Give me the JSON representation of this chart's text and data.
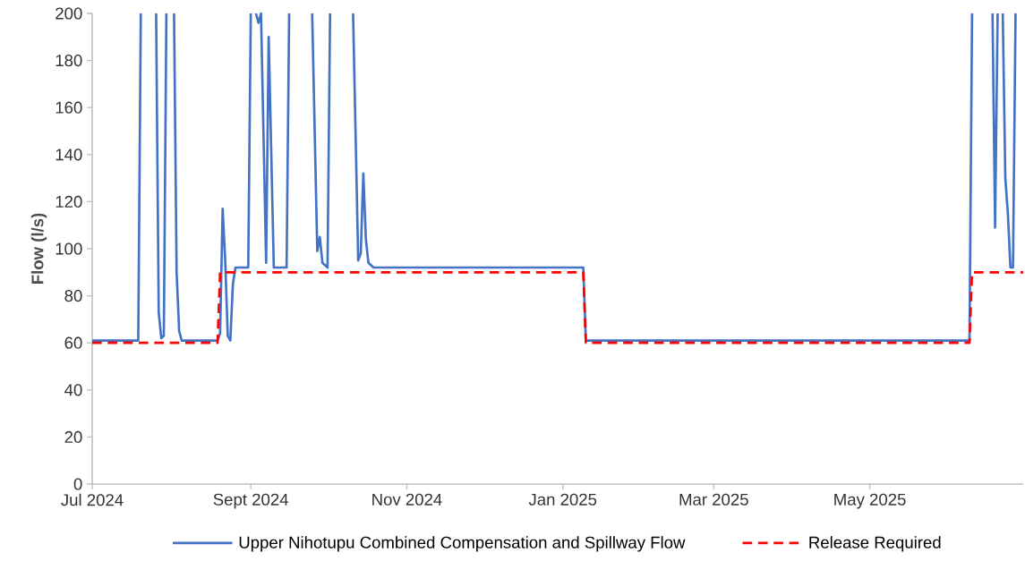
{
  "chart_data": {
    "type": "line",
    "ylabel": "Flow (l/s)",
    "xlim": [
      "2024-07-01",
      "2025-06-30"
    ],
    "xticks": [
      {
        "value": "2024-07-01",
        "label": "Jul 2024"
      },
      {
        "value": "2024-09-01",
        "label": "Sept 2024"
      },
      {
        "value": "2024-11-01",
        "label": "Nov 2024"
      },
      {
        "value": "2025-01-01",
        "label": "Jan 2025"
      },
      {
        "value": "2025-03-01",
        "label": "Mar 2025"
      },
      {
        "value": "2025-05-01",
        "label": "May 2025"
      }
    ],
    "ylim": [
      0,
      200
    ],
    "yticks": [
      0,
      20,
      40,
      60,
      80,
      100,
      120,
      140,
      160,
      180,
      200
    ],
    "grid": false,
    "legend": "bottom",
    "marker": "none",
    "series": [
      {
        "name": "Upper Nihotupu Combined Compensation and Spillway Flow",
        "color": "#4472c4",
        "line_style": "solid",
        "x": [
          "2024-07-01",
          "2024-07-19",
          "2024-07-20",
          "2024-07-23",
          "2024-07-26",
          "2024-07-27",
          "2024-07-28",
          "2024-07-29",
          "2024-07-30",
          "2024-07-31",
          "2024-08-02",
          "2024-08-03",
          "2024-08-04",
          "2024-08-05",
          "2024-08-19",
          "2024-08-20",
          "2024-08-21",
          "2024-08-22",
          "2024-08-23",
          "2024-08-24",
          "2024-08-25",
          "2024-08-26",
          "2024-08-31",
          "2024-09-01",
          "2024-09-02",
          "2024-09-03",
          "2024-09-04",
          "2024-09-05",
          "2024-09-07",
          "2024-09-08",
          "2024-09-10",
          "2024-09-15",
          "2024-09-16",
          "2024-09-20",
          "2024-09-25",
          "2024-09-27",
          "2024-09-28",
          "2024-09-29",
          "2024-10-01",
          "2024-10-02",
          "2024-10-06",
          "2024-10-11",
          "2024-10-13",
          "2024-10-14",
          "2024-10-15",
          "2024-10-16",
          "2024-10-17",
          "2024-10-19",
          "2025-01-09",
          "2025-01-10",
          "2025-06-09",
          "2025-06-10",
          "2025-06-14",
          "2025-06-18",
          "2025-06-19",
          "2025-06-20",
          "2025-06-21",
          "2025-06-22",
          "2025-06-23",
          "2025-06-24",
          "2025-06-25",
          "2025-06-26",
          "2025-06-27"
        ],
        "values": [
          61,
          61,
          200,
          null,
          200,
          73,
          62,
          63,
          200,
          null,
          200,
          90,
          65,
          61,
          61,
          64,
          117,
          95,
          63,
          61,
          85,
          92,
          92,
          200,
          null,
          200,
          196,
          200,
          94,
          190,
          92,
          92,
          200,
          null,
          200,
          99,
          105,
          94,
          92,
          200,
          null,
          200,
          95,
          98,
          132,
          104,
          94,
          92,
          92,
          61,
          61,
          200,
          null,
          200,
          109,
          200,
          null,
          200,
          130,
          115,
          92,
          92,
          200
        ]
      },
      {
        "name": "Release Required",
        "color": "#ff0000",
        "line_style": "dashed",
        "x": [
          "2024-07-01",
          "2024-08-19",
          "2024-08-20",
          "2025-01-09",
          "2025-01-10",
          "2025-06-09",
          "2025-06-10",
          "2025-06-30"
        ],
        "values": [
          60,
          60,
          90,
          90,
          60,
          60,
          90,
          90
        ]
      }
    ]
  }
}
